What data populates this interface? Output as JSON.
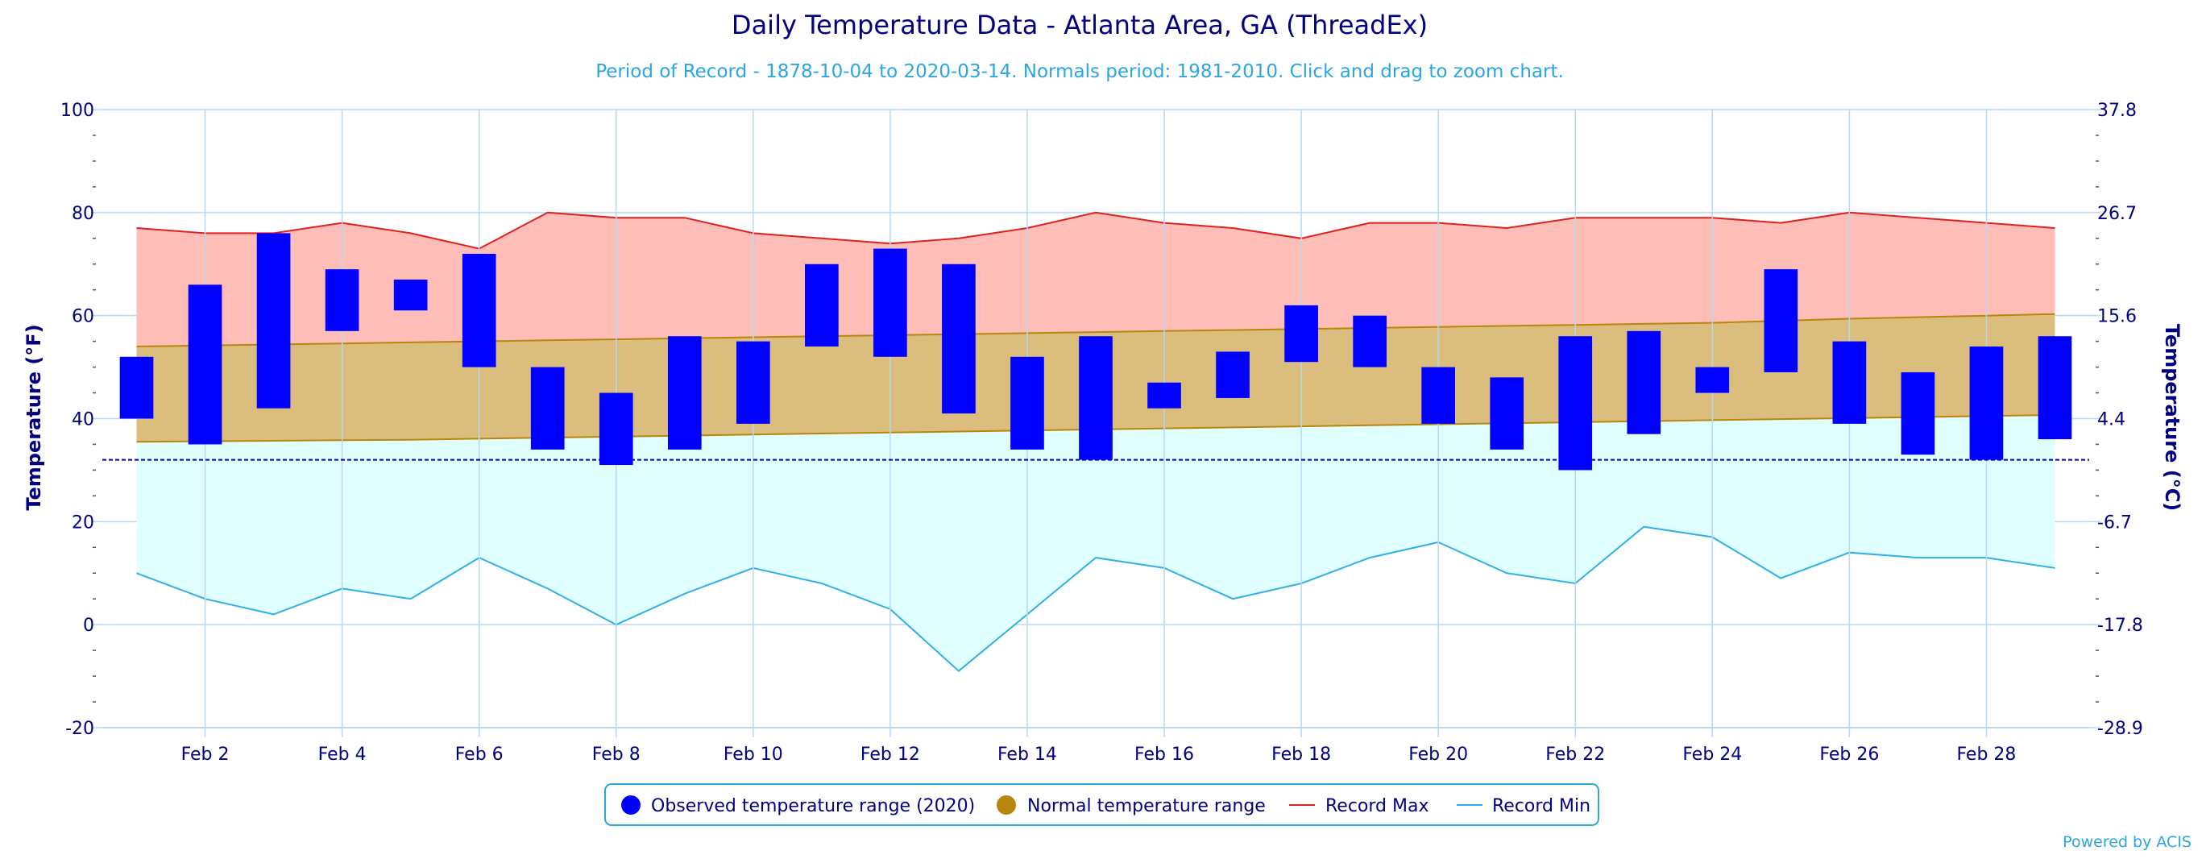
{
  "chart_data": {
    "type": "bar",
    "title": "Daily Temperature Data - Atlanta Area, GA (ThreadEx)",
    "subtitle": "Period of Record - 1878-10-04 to 2020-03-14. Normals period: 1981-2010. Click and drag to zoom chart.",
    "ylabel": "Temperature (°F)",
    "ylabel_right": "Temperature (°C)",
    "ylim": [
      -20,
      100
    ],
    "y_ticks": [
      -20,
      0,
      20,
      40,
      60,
      80,
      100
    ],
    "y_ticks_right": [
      "-28.9",
      "-17.8",
      "-6.7",
      "4.4",
      "15.6",
      "26.7",
      "37.8"
    ],
    "x_tick_labels": [
      "Feb 2",
      "Feb 4",
      "Feb 6",
      "Feb 8",
      "Feb 10",
      "Feb 12",
      "Feb 14",
      "Feb 16",
      "Feb 18",
      "Feb 20",
      "Feb 22",
      "Feb 24",
      "Feb 26",
      "Feb 28"
    ],
    "x_tick_days": [
      2,
      4,
      6,
      8,
      10,
      12,
      14,
      16,
      18,
      20,
      22,
      24,
      26,
      28
    ],
    "days": [
      1,
      2,
      3,
      4,
      5,
      6,
      7,
      8,
      9,
      10,
      11,
      12,
      13,
      14,
      15,
      16,
      17,
      18,
      19,
      20,
      21,
      22,
      23,
      24,
      25,
      26,
      27,
      28,
      29
    ],
    "freezing_line": 32,
    "grid": true,
    "legend_position": "bottom",
    "colors": {
      "title": "#000080",
      "subtitle": "#2aa6e0",
      "observed": "#0000ff",
      "normal_fill": "#dbbd7e",
      "normal_line": "#b8860b",
      "record_max_fill": "#ffbdb8",
      "record_max_line": "#e02020",
      "record_min_fill": "#e0ffff",
      "record_min_line": "#30b0e8",
      "grid": "#b8d8f0",
      "axis_text": "#000080"
    },
    "series": [
      {
        "name": "Observed temperature range (2020)",
        "low": [
          40,
          35,
          42,
          57,
          61,
          50,
          34,
          31,
          34,
          39,
          54,
          52,
          41,
          34,
          32,
          42,
          44,
          51,
          50,
          39,
          34,
          30,
          37,
          45,
          49,
          39,
          33,
          32,
          36
        ],
        "high": [
          52,
          66,
          76,
          69,
          67,
          72,
          50,
          45,
          56,
          55,
          70,
          73,
          70,
          52,
          56,
          47,
          53,
          62,
          60,
          50,
          48,
          56,
          57,
          50,
          69,
          55,
          49,
          54,
          56
        ]
      },
      {
        "name": "Normal temperature range",
        "low": [
          35.5,
          35.6,
          35.7,
          35.8,
          35.9,
          36.1,
          36.3,
          36.5,
          36.7,
          36.9,
          37.1,
          37.3,
          37.5,
          37.7,
          37.9,
          38.1,
          38.3,
          38.5,
          38.7,
          38.9,
          39.1,
          39.3,
          39.5,
          39.7,
          39.9,
          40.1,
          40.3,
          40.5,
          40.7
        ],
        "high": [
          54,
          54.2,
          54.4,
          54.6,
          54.8,
          55,
          55.2,
          55.4,
          55.6,
          55.8,
          56,
          56.2,
          56.4,
          56.6,
          56.8,
          57,
          57.2,
          57.4,
          57.6,
          57.8,
          58,
          58.2,
          58.4,
          58.6,
          59,
          59.4,
          59.7,
          60,
          60.3
        ]
      },
      {
        "name": "Record Max",
        "values": [
          77,
          76,
          76,
          78,
          76,
          73,
          80,
          79,
          79,
          76,
          75,
          74,
          75,
          77,
          80,
          78,
          77,
          75,
          78,
          78,
          77,
          79,
          79,
          79,
          78,
          80,
          79,
          78,
          77
        ]
      },
      {
        "name": "Record Min",
        "values": [
          10,
          5,
          2,
          7,
          5,
          13,
          7,
          0,
          6,
          11,
          8,
          3,
          -9,
          2,
          13,
          11,
          5,
          8,
          13,
          16,
          10,
          8,
          19,
          17,
          9,
          14,
          13,
          13,
          11
        ]
      }
    ]
  },
  "footer": {
    "powered_by": "Powered by ACIS"
  }
}
